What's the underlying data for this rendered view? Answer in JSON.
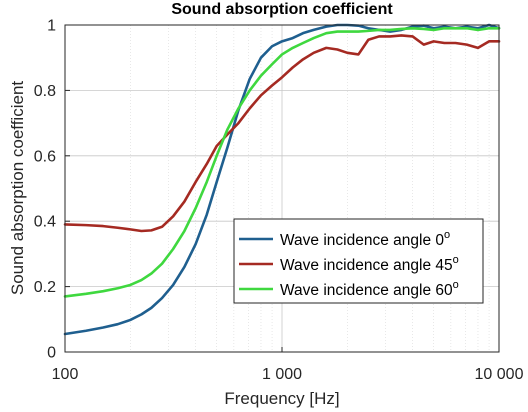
{
  "chart_data": {
    "type": "line",
    "title": "Sound absorption coefficient",
    "xlabel": "Frequency [Hz]",
    "ylabel": "Sound absorption coefficient",
    "xscale": "log",
    "xlim": [
      100,
      10000
    ],
    "ylim": [
      0,
      1
    ],
    "xticks": [
      100,
      1000,
      10000
    ],
    "xtick_labels": [
      "100",
      "1 000",
      "10 000"
    ],
    "yticks": [
      0,
      0.2,
      0.4,
      0.6,
      0.8,
      1
    ],
    "ytick_labels": [
      "0",
      "0.2",
      "0.4",
      "0.6",
      "0.8",
      "1"
    ],
    "grid": true,
    "legend_position": "lower-right",
    "series": [
      {
        "name": "Wave incidence angle 0",
        "superscript": "o",
        "color": "#1f5f8f",
        "points": [
          [
            100,
            0.055
          ],
          [
            125,
            0.065
          ],
          [
            150,
            0.075
          ],
          [
            175,
            0.085
          ],
          [
            200,
            0.098
          ],
          [
            225,
            0.115
          ],
          [
            250,
            0.135
          ],
          [
            280,
            0.165
          ],
          [
            315,
            0.205
          ],
          [
            355,
            0.26
          ],
          [
            400,
            0.33
          ],
          [
            450,
            0.42
          ],
          [
            500,
            0.52
          ],
          [
            560,
            0.625
          ],
          [
            630,
            0.74
          ],
          [
            710,
            0.835
          ],
          [
            800,
            0.9
          ],
          [
            900,
            0.935
          ],
          [
            1000,
            0.95
          ],
          [
            1120,
            0.96
          ],
          [
            1250,
            0.975
          ],
          [
            1400,
            0.985
          ],
          [
            1600,
            0.995
          ],
          [
            1800,
            1.0
          ],
          [
            2000,
            1.0
          ],
          [
            2250,
            0.998
          ],
          [
            2500,
            0.99
          ],
          [
            2800,
            0.985
          ],
          [
            3150,
            0.98
          ],
          [
            3550,
            0.985
          ],
          [
            4000,
            0.995
          ],
          [
            4500,
            0.998
          ],
          [
            5000,
            0.99
          ],
          [
            5600,
            0.995
          ],
          [
            6300,
            0.99
          ],
          [
            7100,
            0.995
          ],
          [
            8000,
            0.99
          ],
          [
            9000,
            1.0
          ],
          [
            10000,
            0.99
          ]
        ]
      },
      {
        "name": "Wave incidence angle 45",
        "superscript": "o",
        "color": "#a52a22",
        "points": [
          [
            100,
            0.39
          ],
          [
            125,
            0.388
          ],
          [
            150,
            0.385
          ],
          [
            175,
            0.38
          ],
          [
            200,
            0.375
          ],
          [
            225,
            0.37
          ],
          [
            250,
            0.372
          ],
          [
            280,
            0.383
          ],
          [
            315,
            0.415
          ],
          [
            355,
            0.46
          ],
          [
            400,
            0.52
          ],
          [
            450,
            0.575
          ],
          [
            500,
            0.63
          ],
          [
            560,
            0.665
          ],
          [
            630,
            0.7
          ],
          [
            710,
            0.745
          ],
          [
            800,
            0.785
          ],
          [
            900,
            0.815
          ],
          [
            1000,
            0.84
          ],
          [
            1120,
            0.87
          ],
          [
            1250,
            0.895
          ],
          [
            1400,
            0.915
          ],
          [
            1600,
            0.93
          ],
          [
            1800,
            0.925
          ],
          [
            2000,
            0.915
          ],
          [
            2250,
            0.91
          ],
          [
            2500,
            0.955
          ],
          [
            2800,
            0.965
          ],
          [
            3150,
            0.965
          ],
          [
            3550,
            0.968
          ],
          [
            4000,
            0.965
          ],
          [
            4500,
            0.94
          ],
          [
            5000,
            0.95
          ],
          [
            5600,
            0.945
          ],
          [
            6300,
            0.945
          ],
          [
            7100,
            0.94
          ],
          [
            8000,
            0.93
          ],
          [
            9000,
            0.95
          ],
          [
            10000,
            0.95
          ]
        ]
      },
      {
        "name": "Wave incidence angle 60",
        "superscript": "o",
        "color": "#3fd83f",
        "points": [
          [
            100,
            0.17
          ],
          [
            125,
            0.178
          ],
          [
            150,
            0.186
          ],
          [
            175,
            0.195
          ],
          [
            200,
            0.205
          ],
          [
            225,
            0.22
          ],
          [
            250,
            0.24
          ],
          [
            280,
            0.27
          ],
          [
            315,
            0.315
          ],
          [
            355,
            0.37
          ],
          [
            400,
            0.44
          ],
          [
            450,
            0.52
          ],
          [
            500,
            0.6
          ],
          [
            560,
            0.68
          ],
          [
            630,
            0.745
          ],
          [
            710,
            0.8
          ],
          [
            800,
            0.845
          ],
          [
            900,
            0.88
          ],
          [
            1000,
            0.91
          ],
          [
            1120,
            0.93
          ],
          [
            1250,
            0.945
          ],
          [
            1400,
            0.96
          ],
          [
            1600,
            0.975
          ],
          [
            1800,
            0.98
          ],
          [
            2000,
            0.98
          ],
          [
            2250,
            0.98
          ],
          [
            2500,
            0.982
          ],
          [
            2800,
            0.985
          ],
          [
            3150,
            0.985
          ],
          [
            3550,
            0.988
          ],
          [
            4000,
            0.99
          ],
          [
            4500,
            0.988
          ],
          [
            5000,
            0.985
          ],
          [
            5600,
            0.99
          ],
          [
            6300,
            0.99
          ],
          [
            7100,
            0.99
          ],
          [
            8000,
            0.985
          ],
          [
            9000,
            0.99
          ],
          [
            10000,
            0.99
          ]
        ]
      }
    ]
  }
}
